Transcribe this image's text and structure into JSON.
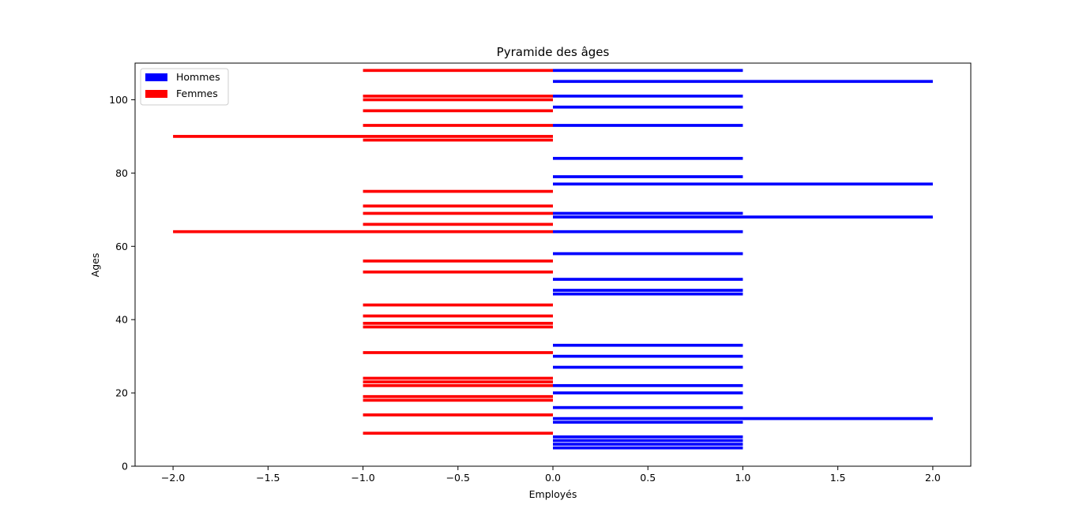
{
  "chart_data": {
    "type": "bar",
    "orientation": "horizontal",
    "title": "Pyramide des âges",
    "xlabel": "Employés",
    "ylabel": "Ages",
    "xlim": [
      -2.2,
      2.2
    ],
    "ylim": [
      0,
      110
    ],
    "xticks": [
      -2.0,
      -1.5,
      -1.0,
      -0.5,
      0.0,
      0.5,
      1.0,
      1.5,
      2.0
    ],
    "xtick_labels": [
      "−2.0",
      "−1.5",
      "−1.0",
      "−0.5",
      "0.0",
      "0.5",
      "1.0",
      "1.5",
      "2.0"
    ],
    "yticks": [
      0,
      20,
      40,
      60,
      80,
      100
    ],
    "ytick_labels": [
      "0",
      "20",
      "40",
      "60",
      "80",
      "100"
    ],
    "grid": false,
    "legend_position": "upper-left",
    "series": [
      {
        "name": "Hommes",
        "color": "#0000ff",
        "bars": [
          {
            "y": 5,
            "value": 1
          },
          {
            "y": 6,
            "value": 1
          },
          {
            "y": 7,
            "value": 1
          },
          {
            "y": 8,
            "value": 1
          },
          {
            "y": 12,
            "value": 1
          },
          {
            "y": 13,
            "value": 2
          },
          {
            "y": 16,
            "value": 1
          },
          {
            "y": 20,
            "value": 1
          },
          {
            "y": 22,
            "value": 1
          },
          {
            "y": 27,
            "value": 1
          },
          {
            "y": 30,
            "value": 1
          },
          {
            "y": 33,
            "value": 1
          },
          {
            "y": 47,
            "value": 1
          },
          {
            "y": 48,
            "value": 1
          },
          {
            "y": 51,
            "value": 1
          },
          {
            "y": 58,
            "value": 1
          },
          {
            "y": 64,
            "value": 1
          },
          {
            "y": 68,
            "value": 2
          },
          {
            "y": 69,
            "value": 1
          },
          {
            "y": 77,
            "value": 2
          },
          {
            "y": 79,
            "value": 1
          },
          {
            "y": 84,
            "value": 1
          },
          {
            "y": 93,
            "value": 1
          },
          {
            "y": 98,
            "value": 1
          },
          {
            "y": 101,
            "value": 1
          },
          {
            "y": 105,
            "value": 2
          },
          {
            "y": 108,
            "value": 1
          }
        ]
      },
      {
        "name": "Femmes",
        "color": "#ff0000",
        "bars": [
          {
            "y": 9,
            "value": -1
          },
          {
            "y": 14,
            "value": -1
          },
          {
            "y": 18,
            "value": -1
          },
          {
            "y": 19,
            "value": -1
          },
          {
            "y": 22,
            "value": -1
          },
          {
            "y": 23,
            "value": -1
          },
          {
            "y": 24,
            "value": -1
          },
          {
            "y": 31,
            "value": -1
          },
          {
            "y": 38,
            "value": -1
          },
          {
            "y": 39,
            "value": -1
          },
          {
            "y": 41,
            "value": -1
          },
          {
            "y": 44,
            "value": -1
          },
          {
            "y": 53,
            "value": -1
          },
          {
            "y": 56,
            "value": -1
          },
          {
            "y": 64,
            "value": -2
          },
          {
            "y": 66,
            "value": -1
          },
          {
            "y": 69,
            "value": -1
          },
          {
            "y": 71,
            "value": -1
          },
          {
            "y": 75,
            "value": -1
          },
          {
            "y": 89,
            "value": -1
          },
          {
            "y": 90,
            "value": -2
          },
          {
            "y": 93,
            "value": -1
          },
          {
            "y": 97,
            "value": -1
          },
          {
            "y": 100,
            "value": -1
          },
          {
            "y": 101,
            "value": -1
          },
          {
            "y": 108,
            "value": -1
          }
        ]
      }
    ]
  }
}
